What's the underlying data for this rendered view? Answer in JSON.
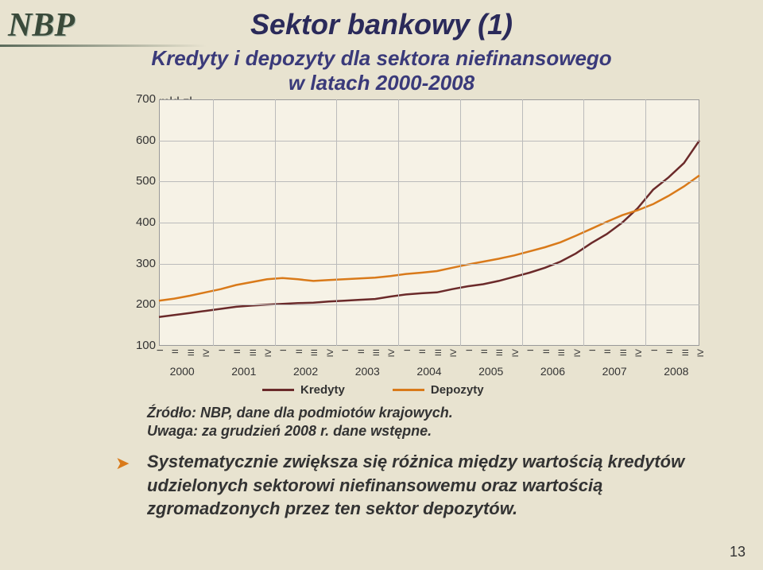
{
  "logo_text": "NBP",
  "title": "Sektor bankowy (1)",
  "subtitle_l1": "Kredyty i depozyty dla sektora niefinansowego",
  "subtitle_l2": "w latach 2000-2008",
  "y_unit": "mld zł",
  "page_number": "13",
  "notes": {
    "l1": "Źródło: NBP, dane dla podmiotów krajowych.",
    "l2": "Uwaga: za grudzień 2008 r. dane wstępne."
  },
  "bullet": "Systematycznie zwiększa się różnica między wartością kredytów udzielonych sektorowi niefinansowemu oraz wartością zgromadzonych przez ten sektor depozytów.",
  "chart": {
    "type": "line",
    "background_color": "#f6f2e6",
    "grid_color": "#bbbbbb",
    "ylim": [
      100,
      700
    ],
    "ytick_step": 100,
    "yticks": [
      100,
      200,
      300,
      400,
      500,
      600,
      700
    ],
    "years": [
      2000,
      2001,
      2002,
      2003,
      2004,
      2005,
      2006,
      2007,
      2008
    ],
    "quarters": [
      "I",
      "II",
      "III",
      "IV"
    ],
    "series": [
      {
        "name": "Kredyty",
        "color": "#6b2a2a",
        "width": 2.5,
        "values": [
          170,
          175,
          180,
          185,
          190,
          195,
          198,
          200,
          202,
          204,
          205,
          208,
          210,
          212,
          214,
          220,
          225,
          228,
          230,
          238,
          245,
          250,
          258,
          268,
          278,
          290,
          305,
          325,
          350,
          372,
          400,
          435,
          480,
          510,
          545,
          600
        ]
      },
      {
        "name": "Depozyty",
        "color": "#d97a1a",
        "width": 2.5,
        "values": [
          210,
          215,
          222,
          230,
          238,
          248,
          255,
          262,
          265,
          262,
          258,
          260,
          262,
          264,
          266,
          270,
          275,
          278,
          282,
          290,
          298,
          305,
          312,
          320,
          330,
          340,
          352,
          368,
          385,
          402,
          418,
          430,
          445,
          465,
          488,
          515
        ]
      }
    ],
    "title_fontsize": 36,
    "label_fontsize": 15
  },
  "legend": {
    "l0": "Kredyty",
    "l1": "Depozyty"
  }
}
